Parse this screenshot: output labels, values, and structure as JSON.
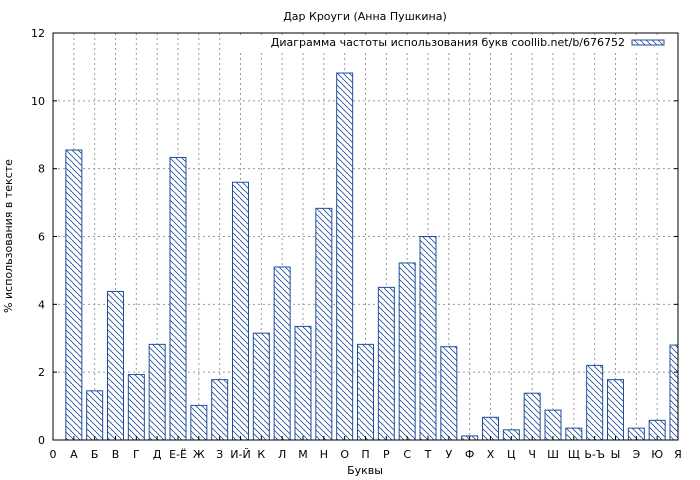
{
  "chart_data": {
    "type": "bar",
    "title": "Дар Кроуги (Анна Пушкина)",
    "xlabel": "Буквы",
    "ylabel": "% использования в тексте",
    "ylim": [
      0,
      12
    ],
    "yticks": [
      "0",
      "2",
      "4",
      "6",
      "8",
      "10",
      "12"
    ],
    "x_origin_label": "0",
    "grid": true,
    "legend_position": "top-right",
    "bar_color": "#1f4e9c",
    "series": [
      {
        "name": "Диаграмма частоты использования букв coollib.net/b/676752",
        "values": [
          8.55,
          1.45,
          4.38,
          1.93,
          2.82,
          8.33,
          1.02,
          1.78,
          7.6,
          3.15,
          5.1,
          3.35,
          6.83,
          10.82,
          2.82,
          4.5,
          5.22,
          6.0,
          2.75,
          0.12,
          0.67,
          0.3,
          1.38,
          0.88,
          0.35,
          2.2,
          1.78,
          0.35,
          0.58,
          2.8
        ]
      }
    ],
    "categories": [
      "А",
      "Б",
      "В",
      "Г",
      "Д",
      "Е-Ё",
      "Ж",
      "З",
      "И-Й",
      "К",
      "Л",
      "М",
      "Н",
      "О",
      "П",
      "Р",
      "С",
      "Т",
      "У",
      "Ф",
      "Х",
      "Ц",
      "Ч",
      "Ш",
      "Щ",
      "Ь-Ъ",
      "Ы",
      "Э",
      "Ю",
      "Я"
    ]
  }
}
